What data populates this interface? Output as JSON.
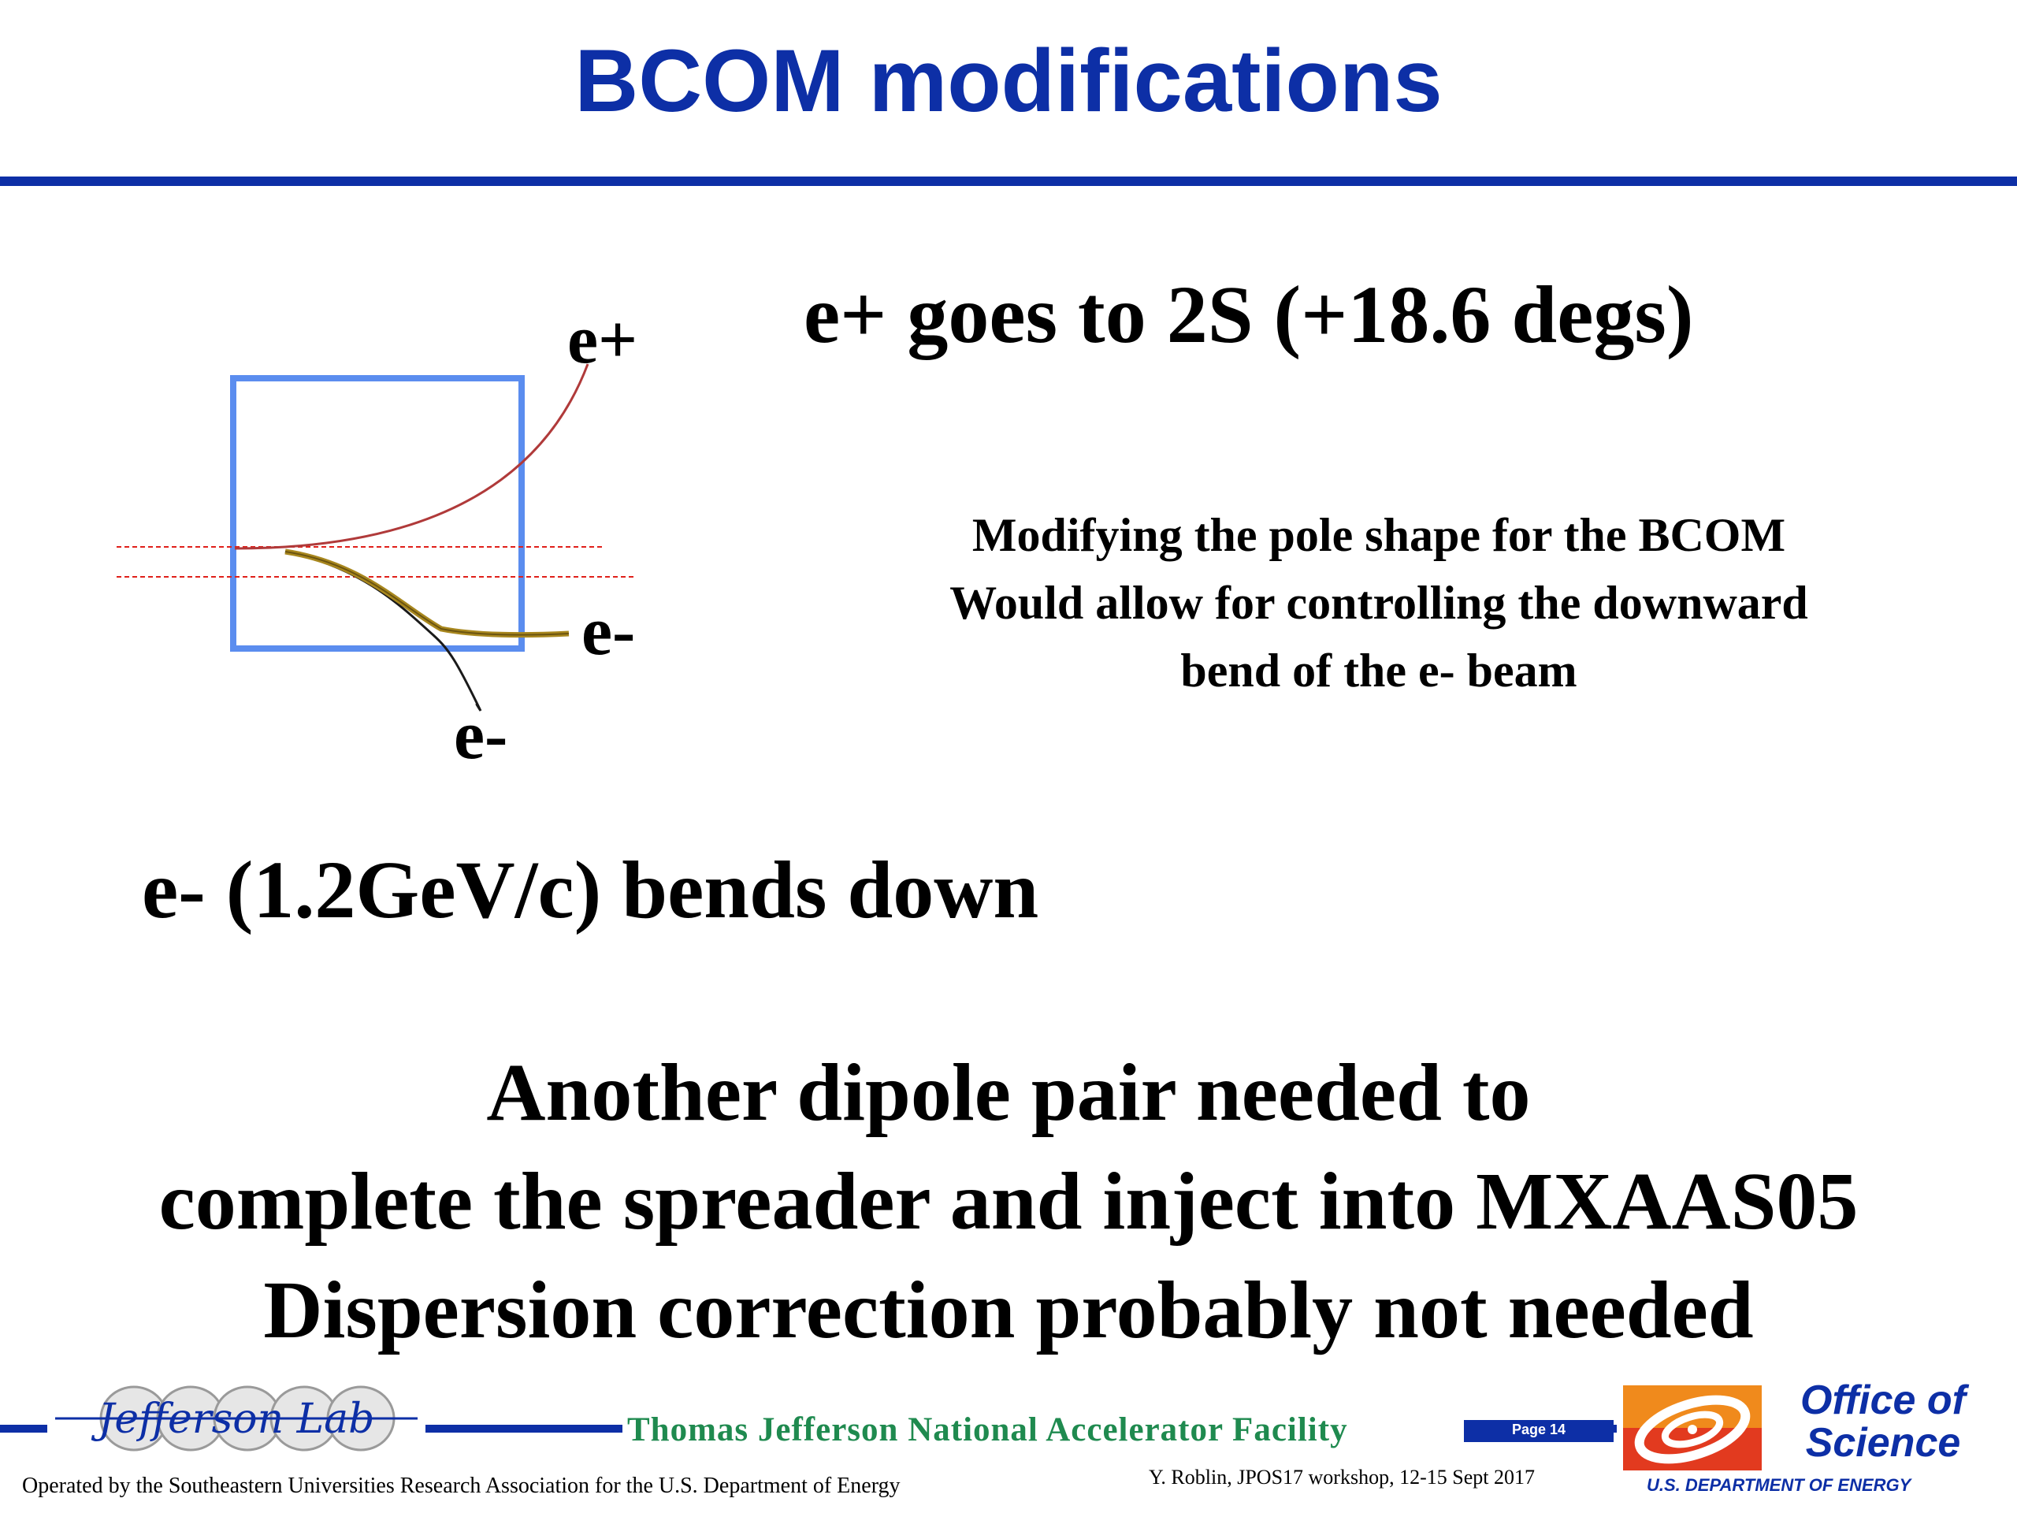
{
  "title": "BCOM modifications",
  "diagram": {
    "label_positron": "e+",
    "label_electron_modified": "e-",
    "label_electron": "e-"
  },
  "headline_right": "e+ goes to 2S (+18.6 degs)",
  "description_lines": [
    "Modifying the pole shape for the BCOM",
    "Would allow for controlling the downward",
    "bend of the e- beam"
  ],
  "headline_left": "e- (1.2GeV/c) bends down",
  "conclusion_lines": [
    "Another dipole pair  needed to",
    "complete the spreader and inject into MXAAS05",
    "Dispersion correction probably not needed"
  ],
  "footer": {
    "logo_text": "Jefferson Lab",
    "facility": "Thomas Jefferson National Accelerator Facility",
    "page": "Page 14",
    "operated_by": "Operated by the Southeastern Universities Research Association for the U.S. Department of  Energy",
    "author": "Y. Roblin, JPOS17 workshop, 12-15 Sept 2017",
    "office_line1": "Office of",
    "office_line2": "Science",
    "doe": "U.S. DEPARTMENT OF ENERGY"
  },
  "colors": {
    "title_blue": "#0d2fa6",
    "magnet_box": "#5b8def",
    "positron_track": "#b03a3a",
    "modified_electron_track": "#a8871e",
    "reference_lines": "#e0201a",
    "facility_green": "#1f8a4f",
    "doe_red": "#e23a1f",
    "doe_orange": "#f08a1c"
  }
}
